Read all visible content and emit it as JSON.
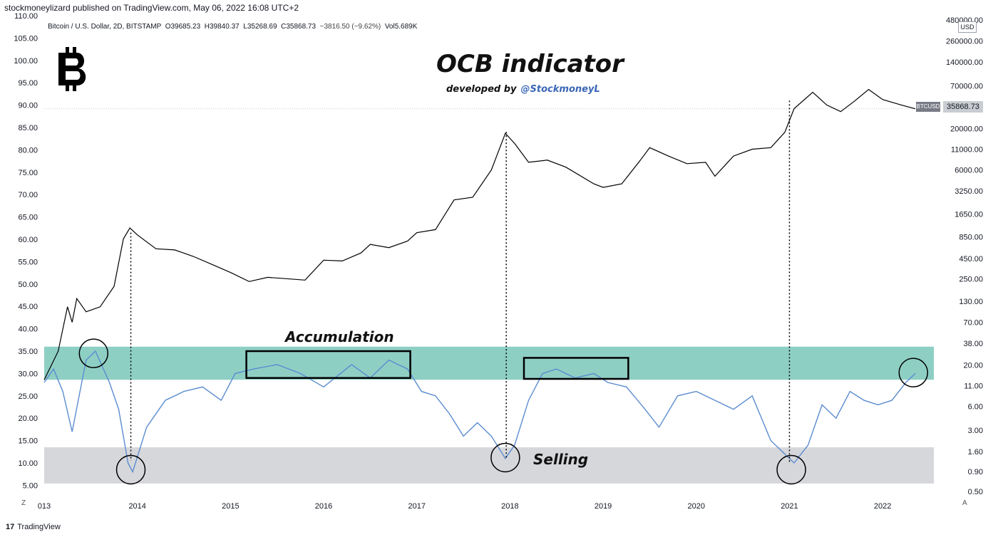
{
  "header": {
    "published": "stockmoneylizard published on TradingView.com, May 06, 2022 16:08 UTC+2",
    "symbol": "Bitcoin / U.S. Dollar, 2D, BITSTAMP",
    "open_label": "O",
    "open": "39685.23",
    "high_label": "H",
    "high": "39840.37",
    "low_label": "L",
    "low": "35268.69",
    "close_label": "C",
    "close": "35868.73",
    "change": "−3816.50 (−9.62%)",
    "vol_label": "Vol",
    "vol": "5.689K"
  },
  "annotations": {
    "title": "OCB indicator",
    "developed_by": "developed by",
    "handle": "@StockmoneyL",
    "accumulation": "Accumulation",
    "selling": "Selling"
  },
  "price_tag": {
    "ticker": "BTCUSD",
    "value": "35868.73",
    "currency": "USD"
  },
  "footer": {
    "brand": "TradingView",
    "z_button": "Z",
    "a_button": "A"
  },
  "colors": {
    "price_line": "#000000",
    "indicator_line": "#5b8cd0",
    "accumulation_zone": "#8ecfc4",
    "selling_zone": "#d6d7db",
    "dotted_grid": "#c7c9ce"
  },
  "chart_data": {
    "type": "line",
    "x_ticks": [
      "2013",
      "2014",
      "2015",
      "2016",
      "2017",
      "2018",
      "2019",
      "2020",
      "2021",
      "2022"
    ],
    "x_tick_labels": [
      "013",
      "2014",
      "2015",
      "2016",
      "2017",
      "2018",
      "2019",
      "2020",
      "2021",
      "2022"
    ],
    "xlim": [
      2013.0,
      2022.55
    ],
    "left_axis": {
      "ticks": [
        "110.00",
        "105.00",
        "100.00",
        "95.00",
        "90.00",
        "85.00",
        "80.00",
        "75.00",
        "70.00",
        "65.00",
        "60.00",
        "55.00",
        "50.00",
        "45.00",
        "40.00",
        "35.00",
        "30.00",
        "25.00",
        "20.00",
        "15.00",
        "10.00",
        "5.00"
      ],
      "ylim": [
        3,
        110
      ]
    },
    "right_axis": {
      "scale": "log",
      "ticks": [
        "480000.00",
        "260000.00",
        "140000.00",
        "70000.00",
        "40000.00",
        "20000.00",
        "11000.00",
        "6000.00",
        "3250.00",
        "1650.00",
        "850.00",
        "450.00",
        "250.00",
        "130.00",
        "70.00",
        "38.00",
        "20.00",
        "11.00",
        "6.00",
        "3.00",
        "1.60",
        "0.90",
        "0.50"
      ]
    },
    "zones": [
      {
        "label": "Accumulation",
        "from": 28.6,
        "to": 36.0
      },
      {
        "label": "Selling",
        "from": 5.4,
        "to": 13.5
      }
    ],
    "series": [
      {
        "axis": "right",
        "x": [
          2013.0,
          2013.15,
          2013.25,
          2013.3,
          2013.35,
          2013.45,
          2013.6,
          2013.75,
          2013.85,
          2013.92,
          2014.0,
          2014.2,
          2014.4,
          2014.6,
          2014.8,
          2015.0,
          2015.2,
          2015.4,
          2015.6,
          2015.8,
          2016.0,
          2016.2,
          2016.4,
          2016.5,
          2016.7,
          2016.9,
          2017.0,
          2017.2,
          2017.4,
          2017.6,
          2017.8,
          2017.95,
          2018.05,
          2018.2,
          2018.4,
          2018.6,
          2018.9,
          2019.0,
          2019.2,
          2019.4,
          2019.5,
          2019.7,
          2019.9,
          2020.1,
          2020.2,
          2020.4,
          2020.6,
          2020.8,
          2020.95,
          2021.05,
          2021.25,
          2021.4,
          2021.55,
          2021.7,
          2021.85,
          2022.0,
          2022.2,
          2022.35
        ],
        "values": [
          13,
          30,
          110,
          70,
          140,
          95,
          110,
          200,
          800,
          1100,
          900,
          600,
          580,
          480,
          380,
          300,
          230,
          260,
          250,
          240,
          430,
          420,
          530,
          680,
          620,
          750,
          960,
          1050,
          2500,
          2700,
          6000,
          17500,
          13000,
          7500,
          8000,
          6500,
          4000,
          3600,
          4000,
          8000,
          11500,
          9000,
          7200,
          7500,
          5000,
          9000,
          11000,
          11500,
          18000,
          36000,
          58000,
          40000,
          33000,
          45000,
          63000,
          47000,
          40000,
          35868
        ]
      },
      {
        "axis": "left",
        "x": [
          2013.0,
          2013.1,
          2013.2,
          2013.3,
          2013.45,
          2013.55,
          2013.7,
          2013.8,
          2013.9,
          2013.95,
          2014.1,
          2014.3,
          2014.5,
          2014.7,
          2014.9,
          2015.05,
          2015.25,
          2015.5,
          2015.75,
          2016.0,
          2016.3,
          2016.5,
          2016.7,
          2016.9,
          2017.05,
          2017.2,
          2017.35,
          2017.5,
          2017.65,
          2017.8,
          2017.95,
          2018.05,
          2018.2,
          2018.35,
          2018.5,
          2018.7,
          2018.9,
          2019.05,
          2019.25,
          2019.45,
          2019.6,
          2019.8,
          2020.0,
          2020.2,
          2020.4,
          2020.6,
          2020.8,
          2020.95,
          2021.05,
          2021.2,
          2021.35,
          2021.5,
          2021.65,
          2021.8,
          2021.95,
          2022.1,
          2022.25,
          2022.35
        ],
        "values": [
          28,
          31,
          26,
          17,
          33,
          35,
          28,
          22,
          10,
          8,
          18,
          24,
          26,
          27,
          24,
          30,
          31,
          32,
          30,
          27,
          32,
          29,
          33,
          31,
          26,
          25,
          21,
          16,
          19,
          16,
          11,
          14,
          24,
          30,
          31,
          29,
          30,
          28,
          27,
          22,
          18,
          25,
          26,
          24,
          22,
          25,
          15,
          12,
          10,
          14,
          23,
          20,
          26,
          24,
          23,
          24,
          28,
          30
        ]
      }
    ]
  }
}
